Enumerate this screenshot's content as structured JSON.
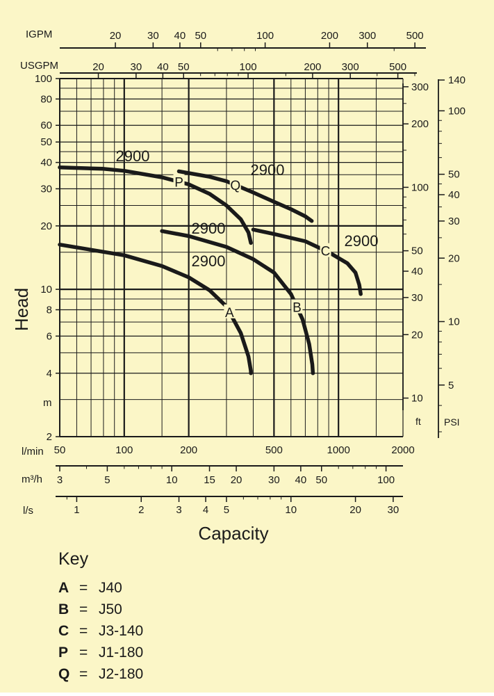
{
  "colors": {
    "background": "#fbf6c7",
    "ink": "#1a1a1a"
  },
  "chart_data": {
    "type": "line",
    "xlabel": "Capacity",
    "ylabel": "Head",
    "x_scale": "log",
    "y_scale": "log",
    "xlim": [
      50,
      2000
    ],
    "ylim": [
      2,
      100
    ],
    "x_unit": "l/min",
    "y_unit": "m",
    "grid": true,
    "x_ticks": [
      "50",
      "100",
      "200",
      "500",
      "1000",
      "2000"
    ],
    "y_ticks": [
      "2",
      "4",
      "6",
      "8",
      "10",
      "20",
      "30",
      "40",
      "50",
      "60",
      "80",
      "100"
    ],
    "secondary_axes": {
      "igpm": {
        "label": "IGPM",
        "ticks": [
          20,
          30,
          40,
          50,
          100,
          200,
          300,
          500
        ]
      },
      "usgpm": {
        "label": "USGPM",
        "ticks": [
          20,
          30,
          40,
          50,
          100,
          200,
          300,
          500
        ]
      },
      "m3h": {
        "label": "m³/h",
        "ticks": [
          3,
          5,
          10,
          15,
          20,
          30,
          40,
          50,
          100
        ]
      },
      "ls": {
        "label": "l/s",
        "ticks": [
          1,
          2,
          3,
          4,
          5,
          10,
          20,
          30
        ]
      },
      "ft": {
        "label": "ft",
        "ticks": [
          10,
          20,
          30,
          40,
          50,
          100,
          200,
          300
        ]
      },
      "psi": {
        "label": "PSI",
        "ticks": [
          5,
          10,
          20,
          30,
          40,
          50,
          100,
          140
        ]
      }
    },
    "series": [
      {
        "name": "A",
        "speed_label": "2900",
        "x": [
          50,
          100,
          150,
          200,
          250,
          300,
          350,
          380,
          390,
          390
        ],
        "y": [
          16.3,
          14.5,
          12.9,
          11.4,
          9.9,
          8.3,
          6.2,
          4.8,
          4.1,
          4.0
        ]
      },
      {
        "name": "B",
        "speed_label": "2900",
        "x": [
          150,
          200,
          300,
          400,
          500,
          600,
          680,
          730,
          755,
          760
        ],
        "y": [
          18.9,
          17.9,
          15.9,
          13.9,
          12.0,
          9.5,
          7.2,
          5.5,
          4.4,
          4.0
        ]
      },
      {
        "name": "C",
        "speed_label": "2900",
        "x": [
          400,
          500,
          700,
          900,
          1100,
          1200,
          1250,
          1270
        ],
        "y": [
          19.2,
          18.3,
          16.9,
          15.0,
          13.3,
          12.0,
          10.5,
          9.5
        ]
      },
      {
        "name": "P",
        "speed_label": "2900",
        "x": [
          50,
          80,
          100,
          150,
          200,
          250,
          300,
          350,
          380,
          390
        ],
        "y": [
          37.9,
          37.3,
          36.5,
          34.0,
          31.5,
          28.4,
          25.0,
          21.5,
          18.6,
          16.6
        ]
      },
      {
        "name": "Q",
        "speed_label": "2900",
        "x": [
          180,
          250,
          300,
          400,
          500,
          600,
          700,
          750
        ],
        "y": [
          36.3,
          34.2,
          32.6,
          28.8,
          26.0,
          24.0,
          22.2,
          21.1
        ]
      }
    ]
  },
  "labels": {
    "igpm": "IGPM",
    "usgpm": "USGPM",
    "y_unit": "m",
    "x_unit": "l/min",
    "m3h": "m³/h",
    "ls": "l/s",
    "ft": "ft",
    "psi": "PSI",
    "ylabel": "Head",
    "xlabel": "Capacity"
  },
  "key": {
    "title": "Key",
    "items": [
      {
        "letter": "A",
        "eq": "=",
        "model": "J40"
      },
      {
        "letter": "B",
        "eq": "=",
        "model": "J50"
      },
      {
        "letter": "C",
        "eq": "=",
        "model": "J3-140"
      },
      {
        "letter": "P",
        "eq": "=",
        "model": "J1-180"
      },
      {
        "letter": "Q",
        "eq": "=",
        "model": "J2-180"
      }
    ]
  }
}
